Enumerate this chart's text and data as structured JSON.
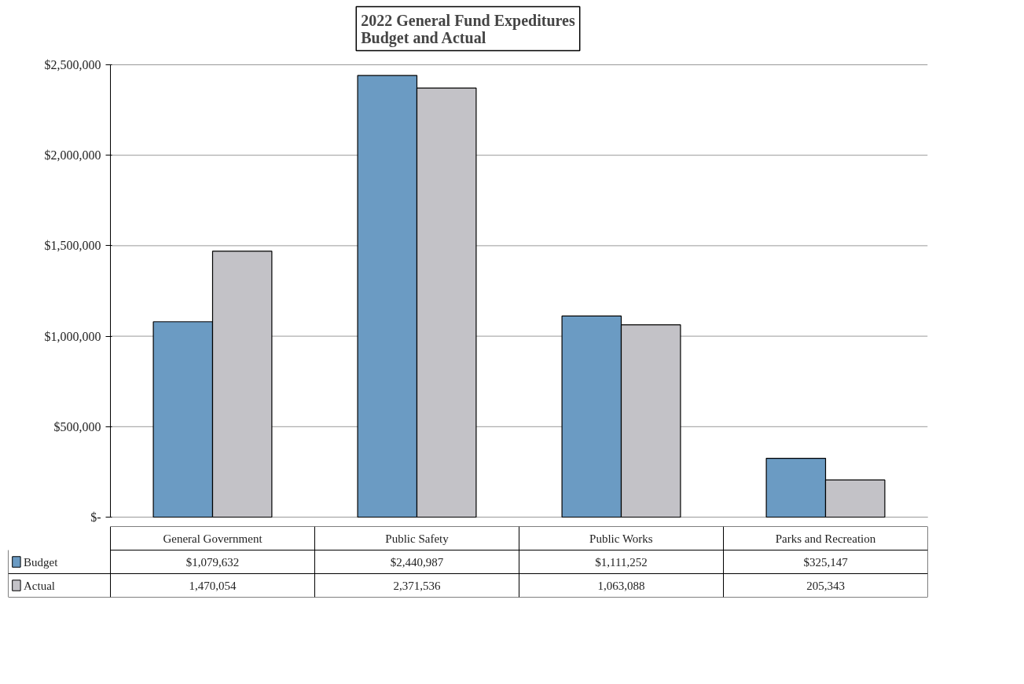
{
  "chart_data": {
    "type": "bar",
    "title": "2022 General Fund Expeditures\nBudget and Actual",
    "categories": [
      "General Government",
      "Public Safety",
      "Public Works",
      "Parks and Recreation"
    ],
    "series": [
      {
        "name": "Budget",
        "color": "#6b9bc3",
        "values": [
          1079632,
          2440987,
          1111252,
          325147
        ],
        "value_labels": [
          "$1,079,632",
          "$2,440,987",
          "$1,111,252",
          "$325,147"
        ]
      },
      {
        "name": "Actual",
        "color": "#c3c2c7",
        "values": [
          1470054,
          2371536,
          1063088,
          205343
        ],
        "value_labels": [
          "1,470,054",
          "2,371,536",
          "1,063,088",
          "205,343"
        ]
      }
    ],
    "ylim": [
      0,
      2500000
    ],
    "yticks": [
      {
        "value": 0,
        "label": "$-"
      },
      {
        "value": 500000,
        "label": "$500,000"
      },
      {
        "value": 1000000,
        "label": "$1,000,000"
      },
      {
        "value": 1500000,
        "label": "$1,500,000"
      },
      {
        "value": 2000000,
        "label": "$2,000,000"
      },
      {
        "value": 2500000,
        "label": "$2,500,000"
      }
    ],
    "grid": "y",
    "legend": "bottom"
  }
}
